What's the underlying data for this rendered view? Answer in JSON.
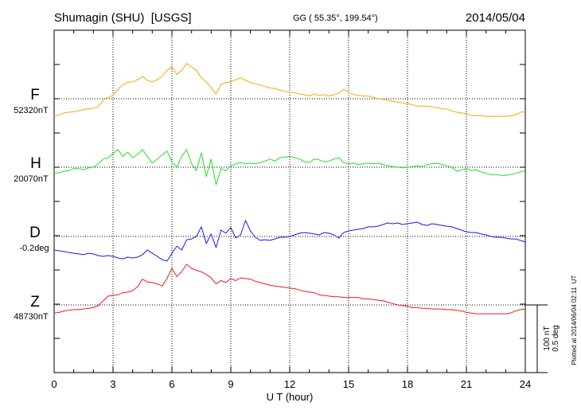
{
  "chart_data": {
    "type": "line",
    "title": "Shumagin (SHU)  [USGS]",
    "coordinates": "GG ( 55.35°, 199.54°)",
    "date": "2014/05/04",
    "xlabel": "U T (hour)",
    "xlim": [
      0,
      24
    ],
    "x_ticks": [
      0,
      3,
      6,
      9,
      12,
      15,
      18,
      21,
      24
    ],
    "x_step_hours": 0.25,
    "scale_nT": 100,
    "scale_deg": 0.5,
    "scale_labels": {
      "nT": "100 nT",
      "deg": "0.5 deg"
    },
    "plotted_at": "Plotted at 2014/06/04 02:11  UT",
    "series": [
      {
        "name": "F",
        "baseline": 52320,
        "baseline_label": "52320nT",
        "color": "#f5a800",
        "deviation_nT": [
          -26,
          -24,
          -21,
          -20,
          -19,
          -18,
          -16,
          -15,
          -14,
          -12,
          -2,
          2,
          5,
          14,
          21,
          24,
          25,
          28,
          33,
          27,
          25,
          28,
          33,
          42,
          47,
          36,
          42,
          52,
          47,
          42,
          31,
          25,
          16,
          7,
          21,
          24,
          25,
          28,
          31,
          27,
          24,
          22,
          20,
          18,
          16,
          15,
          13,
          11,
          9,
          9,
          7,
          6,
          4,
          7,
          5,
          6,
          4,
          6,
          8,
          14,
          9,
          6,
          5,
          4,
          4,
          2,
          0,
          -1,
          -2,
          -4,
          -5,
          -6,
          -7,
          -9,
          -11,
          -11,
          -11,
          -12,
          -13,
          -15,
          -15,
          -18,
          -20,
          -21,
          -22,
          -25,
          -25,
          -25,
          -26,
          -26,
          -26,
          -26,
          -26,
          -25,
          -24,
          -20,
          -19
        ]
      },
      {
        "name": "H",
        "baseline": 20070,
        "baseline_label": "20070nT",
        "color": "#22e022",
        "deviation_nT": [
          -9,
          -8,
          -6,
          -5,
          -2,
          -2,
          -4,
          -1,
          0,
          5,
          12,
          14,
          20,
          26,
          16,
          22,
          14,
          19,
          26,
          16,
          6,
          12,
          18,
          24,
          8,
          0,
          16,
          26,
          5,
          -5,
          21,
          -14,
          12,
          -26,
          -2,
          -5,
          2,
          5,
          7,
          5,
          6,
          5,
          7,
          9,
          12,
          9,
          14,
          15,
          16,
          14,
          12,
          8,
          7,
          12,
          11,
          8,
          9,
          12,
          14,
          7,
          5,
          6,
          4,
          5,
          6,
          5,
          6,
          4,
          2,
          1,
          0,
          -1,
          0,
          1,
          2,
          1,
          4,
          5,
          6,
          4,
          2,
          0,
          -6,
          -4,
          -2,
          -5,
          -4,
          -7,
          -9,
          -11,
          -11,
          -12,
          -12,
          -11,
          -9,
          -7,
          -5
        ]
      },
      {
        "name": "D",
        "baseline": -0.2,
        "baseline_label": "-0.2deg",
        "color": "#1a1af0",
        "deviation_deg": [
          -0.1,
          -0.106,
          -0.112,
          -0.118,
          -0.124,
          -0.129,
          -0.135,
          -0.124,
          -0.129,
          -0.141,
          -0.147,
          -0.141,
          -0.147,
          -0.159,
          -0.165,
          -0.153,
          -0.159,
          -0.153,
          -0.135,
          -0.1,
          -0.124,
          -0.147,
          -0.171,
          -0.182,
          -0.124,
          -0.071,
          -0.1,
          -0.024,
          -0.018,
          0.0,
          0.071,
          -0.053,
          0.018,
          -0.082,
          0.047,
          0.024,
          0.065,
          -0.012,
          0.012,
          0.118,
          0.041,
          -0.006,
          -0.029,
          -0.024,
          -0.029,
          -0.018,
          -0.006,
          -0.006,
          0.0,
          0.012,
          0.024,
          0.029,
          0.024,
          0.018,
          0.012,
          0.029,
          0.024,
          0.012,
          -0.012,
          0.029,
          0.041,
          0.047,
          0.053,
          0.059,
          0.071,
          0.071,
          0.076,
          0.088,
          0.1,
          0.094,
          0.1,
          0.088,
          0.094,
          0.1,
          0.106,
          0.088,
          0.082,
          0.094,
          0.088,
          0.082,
          0.076,
          0.071,
          0.059,
          0.047,
          0.035,
          0.029,
          0.029,
          0.018,
          0.012,
          0.0,
          -0.006,
          -0.006,
          -0.012,
          -0.018,
          -0.018,
          -0.029,
          -0.041
        ]
      },
      {
        "name": "Z",
        "baseline": 48730,
        "baseline_label": "48730nT",
        "color": "#ec1c1c",
        "deviation_nT": [
          -12,
          -11,
          -9,
          -8,
          -7,
          -7,
          -6,
          -5,
          -4,
          -1,
          6,
          13,
          14,
          15,
          18,
          19,
          21,
          27,
          38,
          34,
          33,
          31,
          28,
          39,
          54,
          42,
          49,
          60,
          54,
          51,
          49,
          45,
          40,
          31,
          36,
          33,
          39,
          36,
          40,
          39,
          38,
          35,
          33,
          31,
          29,
          28,
          27,
          26,
          25,
          24,
          22,
          20,
          19,
          18,
          15,
          14,
          13,
          12,
          12,
          11,
          11,
          11,
          11,
          9,
          9,
          8,
          7,
          6,
          4,
          2,
          0,
          -1,
          -2,
          -4,
          -4,
          -5,
          -5,
          -6,
          -6,
          -6,
          -7,
          -7,
          -8,
          -9,
          -11,
          -12,
          -13,
          -13,
          -13,
          -13,
          -13,
          -13,
          -13,
          -12,
          -9,
          -7,
          -6
        ]
      }
    ]
  }
}
